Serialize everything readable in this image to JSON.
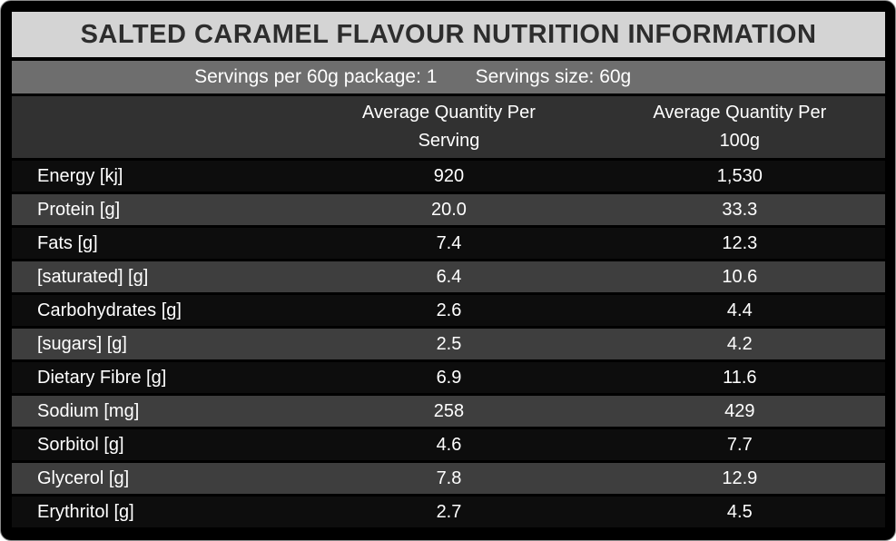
{
  "panel": {
    "title": "SALTED CARAMEL FLAVOUR NUTRITION INFORMATION",
    "servings_line": {
      "per_package": "Servings per 60g package: 1",
      "size": "Servings size: 60g"
    },
    "columns": [
      {
        "line1": "Average Quantity Per",
        "line2": "Serving"
      },
      {
        "line1": "Average Quantity Per",
        "line2": "100g"
      }
    ],
    "rows": [
      {
        "label": "Energy [kj]",
        "per_serving": "920",
        "per_100g": "1,530"
      },
      {
        "label": "Protein [g]",
        "per_serving": "20.0",
        "per_100g": "33.3"
      },
      {
        "label": "Fats [g]",
        "per_serving": "7.4",
        "per_100g": "12.3"
      },
      {
        "label": "[saturated] [g]",
        "per_serving": "6.4",
        "per_100g": "10.6"
      },
      {
        "label": "Carbohydrates [g]",
        "per_serving": "2.6",
        "per_100g": "4.4"
      },
      {
        "label": "[sugars] [g]",
        "per_serving": "2.5",
        "per_100g": "4.2"
      },
      {
        "label": "Dietary Fibre [g]",
        "per_serving": "6.9",
        "per_100g": "11.6"
      },
      {
        "label": "Sodium [mg]",
        "per_serving": "258",
        "per_100g": "429"
      },
      {
        "label": "Sorbitol [g]",
        "per_serving": "4.6",
        "per_100g": "7.7"
      },
      {
        "label": "Glycerol [g]",
        "per_serving": "7.8",
        "per_100g": "12.9"
      },
      {
        "label": "Erythritol [g]",
        "per_serving": "2.7",
        "per_100g": "4.5"
      }
    ],
    "colors": {
      "background": "#000000",
      "title_band_bg": "#d4d4d4",
      "title_text": "#2d2d2d",
      "servings_band_bg": "#6e6e6e",
      "header_band_bg": "#313131",
      "row_dark_bg": "#0d0d0d",
      "row_gray_bg": "#3e3e3e",
      "row_text": "#ffffff",
      "frame_border": "#8a8a8a"
    }
  }
}
